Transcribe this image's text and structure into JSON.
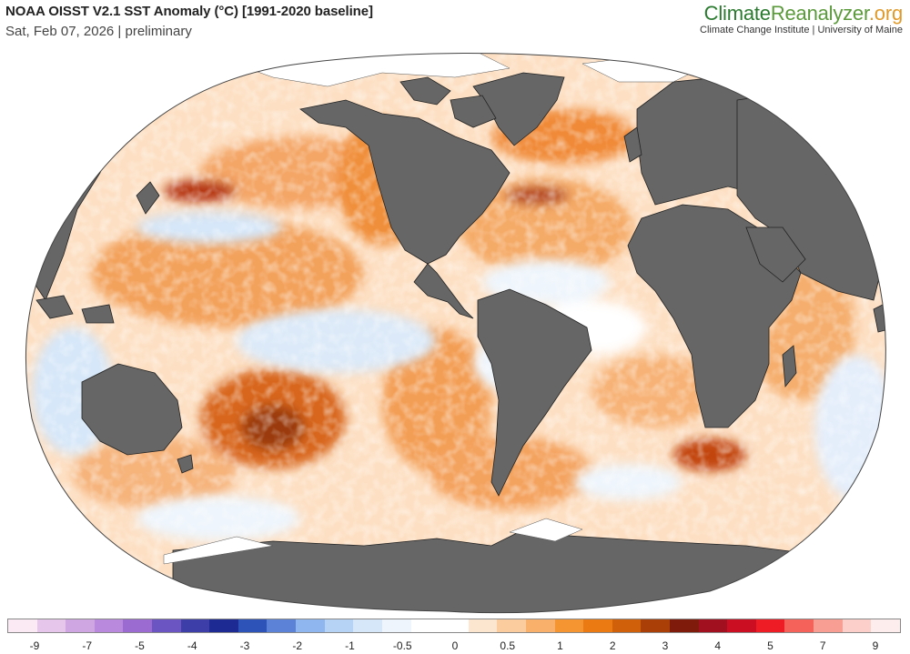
{
  "header": {
    "title": "NOAA OISST V2.1 SST Anomaly (°C) [1991-2020 baseline]",
    "subtitle": "Sat, Feb 07, 2026 | preliminary"
  },
  "brand": {
    "name_part1": "Climate",
    "name_part2": "Reanalyzer",
    "name_part3": ".org",
    "tagline": "Climate Change Institute | University of Maine"
  },
  "map": {
    "projection": "Winkel-style world",
    "ocean_color": "#ffffff",
    "land_color": "#666666",
    "ice_color": "#ffffff"
  },
  "legend": {
    "colors": [
      "#fbe9f3",
      "#e6c6ea",
      "#cfa6e2",
      "#b889dd",
      "#9b6bd2",
      "#6b55c2",
      "#3d3ea8",
      "#1d2a94",
      "#2d52b8",
      "#5b82d6",
      "#8fb6ee",
      "#b6d3f5",
      "#d6e7f9",
      "#eef5fc",
      "#ffffff",
      "#ffffff",
      "#fde6cf",
      "#fbcc9e",
      "#f8b06a",
      "#f49532",
      "#ec7a12",
      "#d1600a",
      "#aa3f08",
      "#7e1b0a",
      "#a0101e",
      "#cc0e22",
      "#ee1c25",
      "#f4625a",
      "#f89e93",
      "#fccfca",
      "#fdeeed"
    ],
    "ticks": [
      "-9",
      "-7",
      "-5",
      "-4",
      "-3",
      "-2",
      "-1",
      "-0.5",
      "0",
      "0.5",
      "1",
      "2",
      "3",
      "4",
      "5",
      "7",
      "9"
    ]
  }
}
